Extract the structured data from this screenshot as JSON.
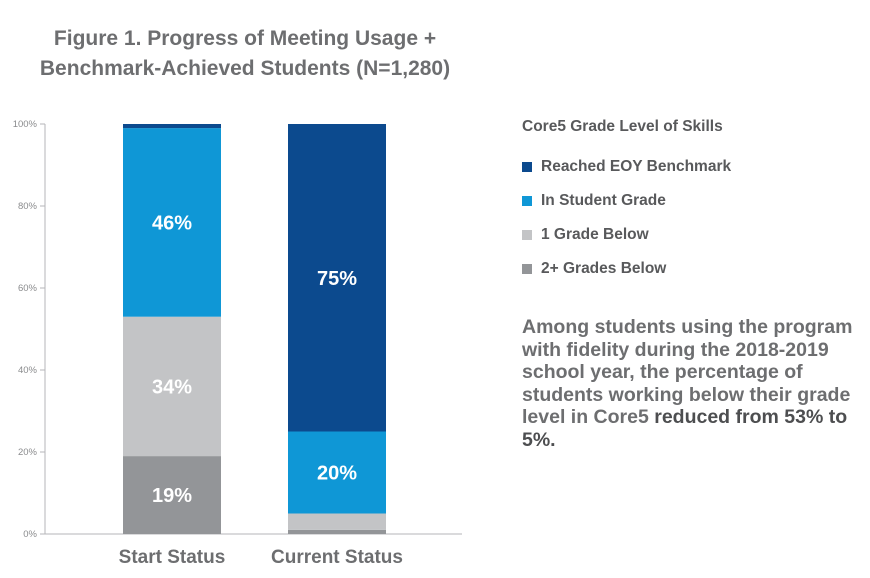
{
  "title": {
    "line1": "Figure 1. Progress of Meeting Usage +",
    "line2": "Benchmark-Achieved Students (N=1,280)"
  },
  "legend": {
    "title": "Core5 Grade Level of Skills"
  },
  "note": {
    "text": "Among students using the program with fidelity during the 2018-2019 school year, the percentage of students working below their grade level in Core5",
    "emphasis": "reduced from 53% to 5%."
  },
  "chart_data": {
    "type": "bar",
    "stacked": true,
    "categories": [
      "Start Status",
      "Current Status"
    ],
    "ylim": [
      0,
      100
    ],
    "yticks": [
      0,
      20,
      40,
      60,
      80,
      100
    ],
    "ytick_labels": [
      "0%",
      "20%",
      "40%",
      "60%",
      "80%",
      "100%"
    ],
    "grid": false,
    "legend_position": "right",
    "series": [
      {
        "name": "2+ Grades Below",
        "color": "#939598",
        "values": [
          19,
          1
        ],
        "labels": [
          "19%",
          ""
        ]
      },
      {
        "name": "1 Grade Below",
        "color": "#c3c4c6",
        "values": [
          34,
          4
        ],
        "labels": [
          "34%",
          ""
        ]
      },
      {
        "name": "In Student Grade",
        "color": "#0f97d6",
        "values": [
          46,
          20
        ],
        "labels": [
          "46%",
          "20%"
        ]
      },
      {
        "name": "Reached EOY Benchmark",
        "color": "#0c4a8e",
        "values": [
          1,
          75
        ],
        "labels": [
          "",
          "75%"
        ]
      }
    ]
  }
}
